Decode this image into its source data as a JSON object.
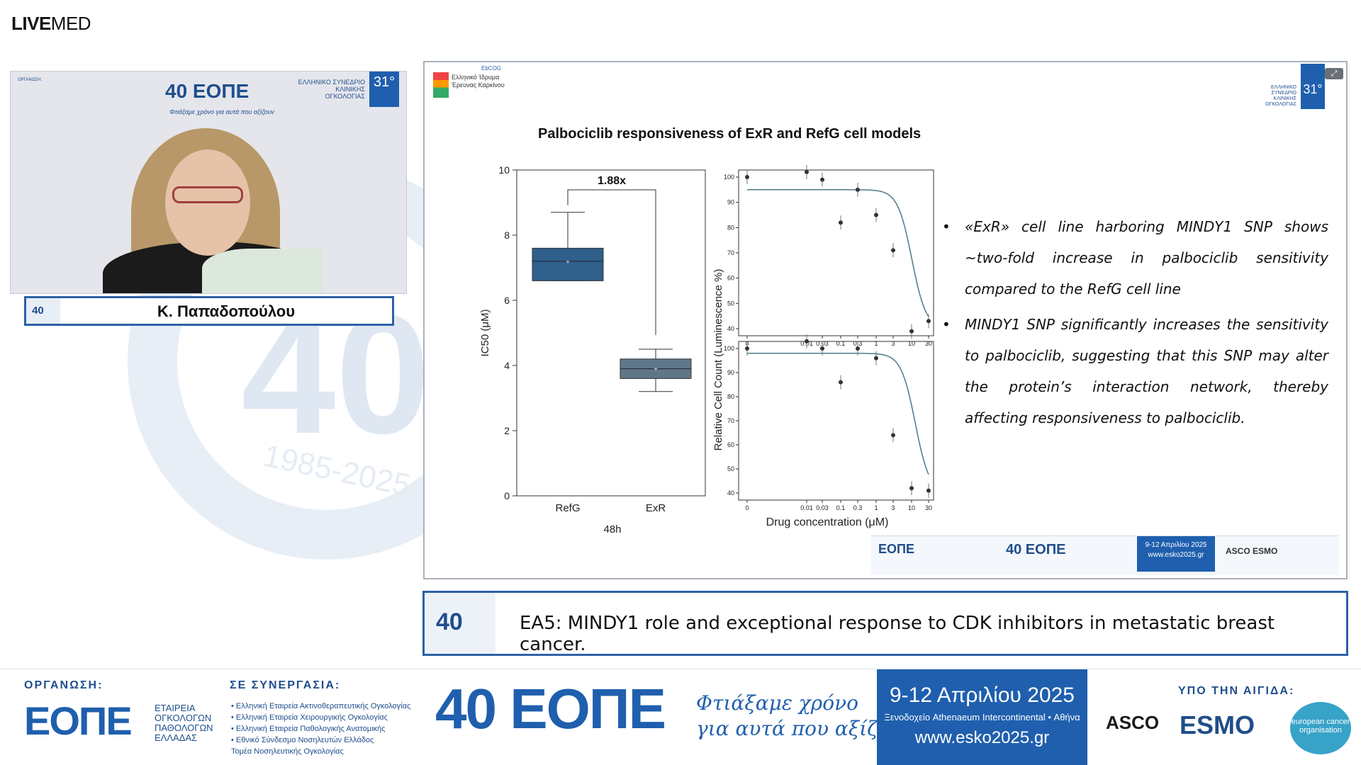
{
  "brand": {
    "bold": "LIVE",
    "rest": "MED"
  },
  "watermark": {
    "number": "40",
    "years": "1985-2025"
  },
  "video": {
    "org_label": "ΟΡΓΑΝΩΣΗ:",
    "logo": "40 ΕΟΠΕ",
    "tagline": "Φτιάξαμε χρόνο για αυτά που αξίζουν",
    "esko_text": "ΕΛΛΗΝΙΚΟ ΣΥΝΕΔΡΙΟ ΚΛΙΝΙΚΗΣ ΟΓΚΟΛΟΓΙΑΣ",
    "esko_box": "31°"
  },
  "speaker": {
    "badge": "40",
    "name": "Κ. Παπαδοπούλου"
  },
  "slide": {
    "logo_text": "Ελληνικό Ίδρυμα Έρευνας Καρκίνου",
    "ebcog": "EbCOG",
    "esko_text": "ΕΛΛΗΝΙΚΟ ΣΥΝΕΔΡΙΟ ΚΛΙΝΙΚΗΣ ΟΓΚΟΛΟΓΙΑΣ",
    "esko_box": "31°",
    "title": "Palbociclib responsiveness of ExR and RefG cell models",
    "bullets": [
      "«ExR» cell line harboring MINDY1 SNP shows ~two-fold increase in palbociclib sensitivity compared to the RefG cell line",
      "MINDY1 SNP significantly increases the sensitivity to palbociclib, suggesting that this SNP may alter the protein’s interaction network, thereby affecting responsiveness to palbociclib."
    ],
    "footer": {
      "org": "ΕΟΠΕ",
      "logo": "40 ΕΟΠΕ",
      "dates": "9-12 Απριλίου 2025",
      "site": "www.esko2025.gr",
      "asco": "ASCO ESMO"
    }
  },
  "chart_data": [
    {
      "type": "box",
      "categories": [
        "RefG",
        "ExR"
      ],
      "ylabel": "IC50 (μM)",
      "xlabel": "48h",
      "ylim": [
        0,
        10
      ],
      "yticks": [
        0,
        2,
        4,
        6,
        8,
        10
      ],
      "boxes": [
        {
          "name": "RefG",
          "min": 6.6,
          "q1": 6.6,
          "median": 7.2,
          "q3": 7.6,
          "max": 8.7,
          "mean": 7.2
        },
        {
          "name": "ExR",
          "min": 3.2,
          "q1": 3.6,
          "median": 3.9,
          "q3": 4.2,
          "max": 4.5,
          "mean": 3.9
        }
      ],
      "annotation": "1.88x"
    },
    {
      "type": "line",
      "panel": "top",
      "x_ticks": [
        "0",
        "0.01",
        "0.03",
        "0.1",
        "0.3",
        "1",
        "3",
        "10",
        "30"
      ],
      "ylim": [
        40,
        100
      ],
      "yticks": [
        40,
        50,
        60,
        70,
        80,
        90,
        100
      ],
      "points": [
        {
          "x": "0",
          "y": 100
        },
        {
          "x": "0.01",
          "y": 102
        },
        {
          "x": "0.03",
          "y": 99
        },
        {
          "x": "0.1",
          "y": 82
        },
        {
          "x": "0.3",
          "y": 95
        },
        {
          "x": "1",
          "y": 85
        },
        {
          "x": "3",
          "y": 71
        },
        {
          "x": "10",
          "y": 39
        },
        {
          "x": "30",
          "y": 43
        }
      ],
      "fit_top": 95,
      "fit_bottom": 40
    },
    {
      "type": "line",
      "panel": "bottom",
      "x_ticks": [
        "0",
        "0.01",
        "0.03",
        "0.1",
        "0.3",
        "1",
        "3",
        "10",
        "30"
      ],
      "ylim": [
        40,
        100
      ],
      "yticks": [
        40,
        50,
        60,
        70,
        80,
        90,
        100
      ],
      "points": [
        {
          "x": "0",
          "y": 100
        },
        {
          "x": "0.01",
          "y": 103
        },
        {
          "x": "0.03",
          "y": 100
        },
        {
          "x": "0.1",
          "y": 86
        },
        {
          "x": "0.3",
          "y": 100
        },
        {
          "x": "1",
          "y": 96
        },
        {
          "x": "3",
          "y": 64
        },
        {
          "x": "10",
          "y": 42
        },
        {
          "x": "30",
          "y": 41
        }
      ],
      "fit_top": 98,
      "fit_bottom": 40
    }
  ],
  "dose_ylabel": "Relative Cell Count (Luminescence %)",
  "dose_xlabel": "Drug concentration (μM)",
  "caption": {
    "badge": "40",
    "text": "ΕΑ5: MINDY1 role and exceptional response to CDK inhibitors in metastatic breast cancer."
  },
  "banner": {
    "org_heading": "ΟΡΓΑΝΩΣΗ:",
    "org_logo": "ΕΟΠΕ",
    "org_sub": [
      "ΕΤΑΙΡΕΙΑ",
      "ΟΓΚΟΛΟΓΩΝ",
      "ΠΑΘΟΛΟΓΩΝ",
      "ΕΛΛΑΔΑΣ"
    ],
    "syn_heading": "ΣΕ ΣΥΝΕΡΓΑΣΙΑ:",
    "syn_list": [
      "• Ελληνική Εταιρεία Ακτινοθεραπευτικής Ογκολογίας",
      "• Ελληνική Εταιρεία Χειρουργικής Ογκολογίας",
      "• Ελληνική Εταιρεία Παθολογικής Ανατομικής",
      "• Εθνικό Σύνδεσμο Νοσηλευτών Ελλάδος",
      "Τομέα Νοσηλευτικής Ογκολογίας"
    ],
    "big_logo": "40 ΕΟΠΕ",
    "slogan_1": "Φτιάξαμε χρόνο",
    "slogan_2": "για αυτά που αξίζουν",
    "dates": "9-12 Απριλίου 2025",
    "venue": "Ξενοδοχείο Athenaeum Intercontinental • Αθήνα",
    "site": "www.esko2025.gr",
    "aig_heading": "ΥΠΟ ΤΗΝ ΑΙΓΙΔΑ:",
    "asco": "ASCO",
    "esmo": "ESMO",
    "eco": "european cancer organisation"
  }
}
